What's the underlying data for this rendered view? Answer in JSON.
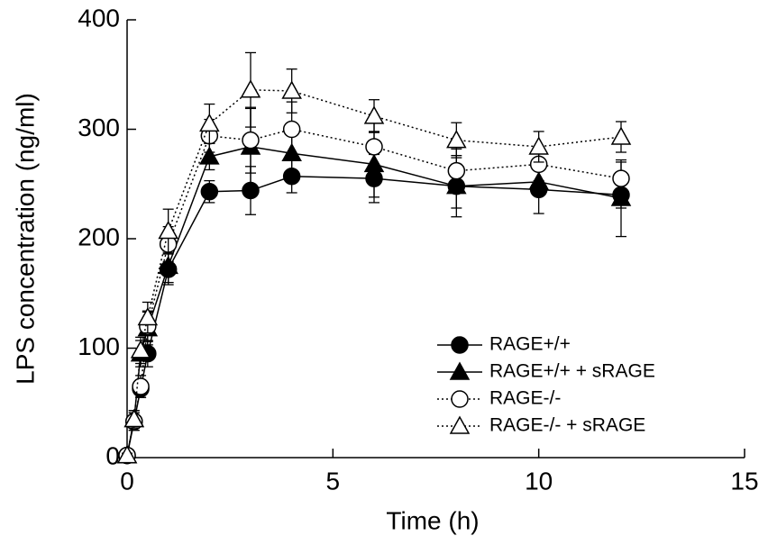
{
  "chart_data": {
    "type": "line",
    "x_label": "Time (h)",
    "y_label": "LPS concentration (ng/ml)",
    "x": [
      0,
      0.17,
      0.33,
      0.5,
      1,
      2,
      3,
      4,
      6,
      8,
      10,
      12
    ],
    "series": [
      {
        "name": "RAGE+/+",
        "color": "#000000",
        "marker": "circle",
        "filled": true,
        "dashed": false,
        "values": [
          2,
          33,
          63,
          95,
          172,
          243,
          244,
          257,
          255,
          248,
          245,
          240
        ],
        "errors": [
          2,
          8,
          8,
          12,
          14,
          10,
          22,
          15,
          22,
          20,
          22,
          12
        ]
      },
      {
        "name": "RAGE+/+ + sRAGE",
        "color": "#000000",
        "marker": "triangle",
        "filled": true,
        "dashed": false,
        "values": [
          2,
          35,
          95,
          118,
          175,
          275,
          284,
          278,
          268,
          248,
          252,
          237
        ],
        "errors": [
          2,
          8,
          12,
          15,
          15,
          12,
          35,
          20,
          30,
          28,
          12,
          35
        ]
      },
      {
        "name": "RAGE-/-",
        "color": "#000000",
        "marker": "circle",
        "filled": false,
        "dashed": true,
        "values": [
          2,
          33,
          65,
          120,
          195,
          294,
          290,
          300,
          284,
          262,
          268,
          255
        ],
        "errors": [
          2,
          8,
          10,
          14,
          16,
          15,
          30,
          25,
          22,
          20,
          15,
          15
        ]
      },
      {
        "name": "RAGE-/- + sRAGE",
        "color": "#000000",
        "marker": "triangle",
        "filled": false,
        "dashed": true,
        "values": [
          2,
          35,
          98,
          128,
          207,
          305,
          336,
          335,
          312,
          290,
          284,
          293
        ],
        "errors": [
          2,
          8,
          12,
          14,
          20,
          18,
          34,
          20,
          15,
          16,
          14,
          14
        ]
      }
    ],
    "xlim": [
      0,
      15
    ],
    "xticks": [
      0,
      5,
      10,
      15
    ],
    "ylim": [
      0,
      400
    ],
    "yticks": [
      0,
      100,
      200,
      300,
      400
    ],
    "legend": "lower-right"
  }
}
